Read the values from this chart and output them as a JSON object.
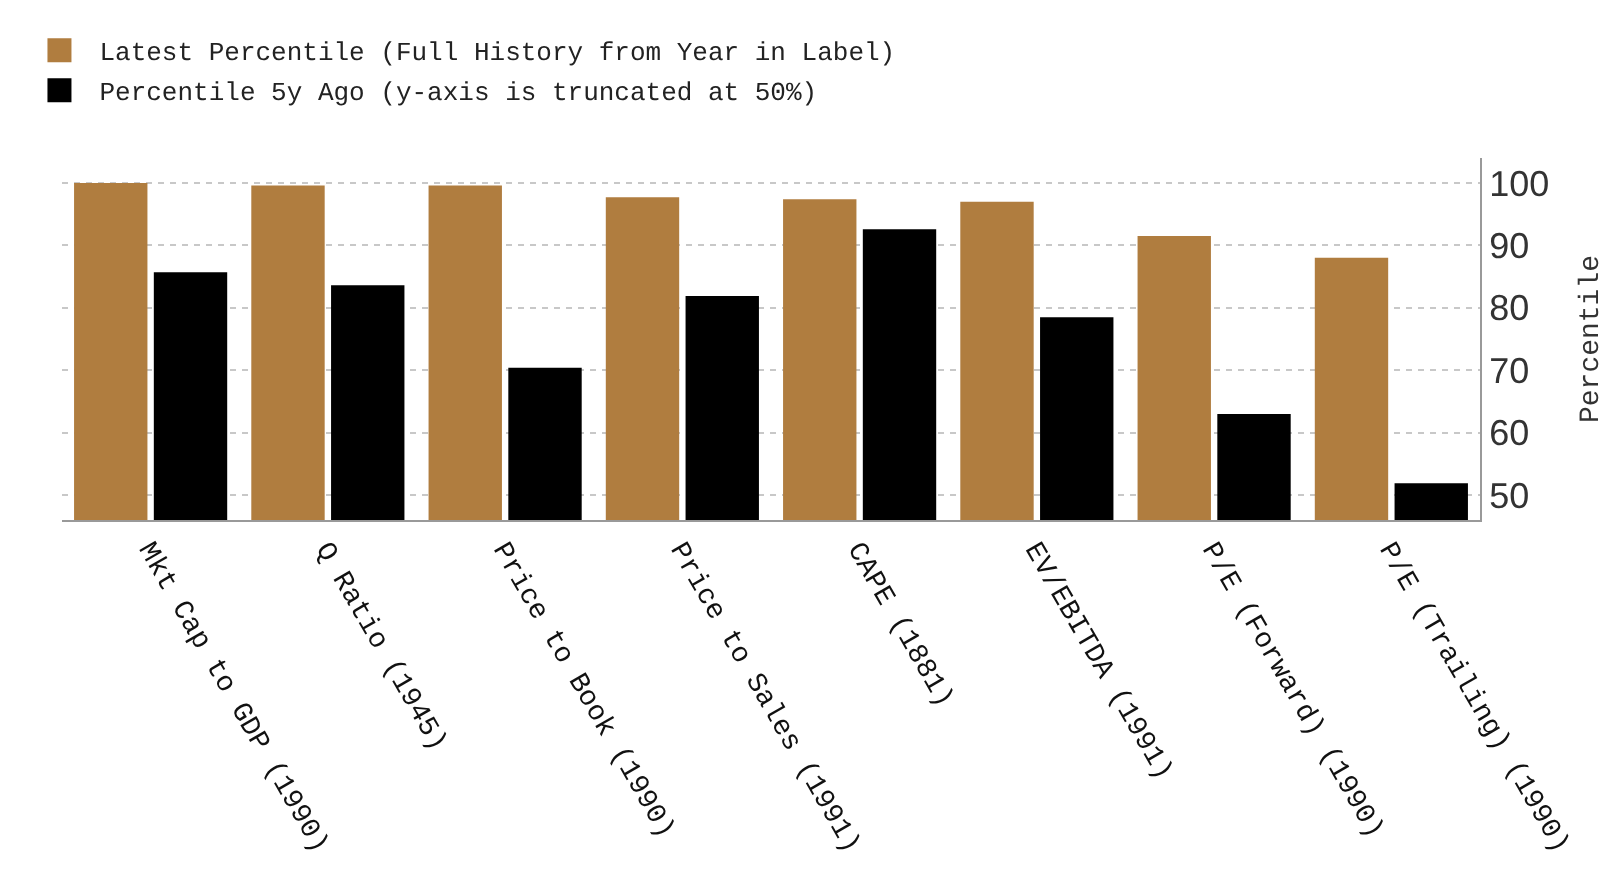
{
  "chart_data": {
    "type": "bar",
    "ylabel": "Percentile",
    "categories": [
      "Mkt Cap to GDP (1990)",
      "Q Ratio (1945)",
      "Price to Book (1990)",
      "Price to Sales (1991)",
      "CAPE (1881)",
      "EV/EBITDA (1991)",
      "P/E (Forward) (1990)",
      "P/E (Trailing) (1990)"
    ],
    "series": [
      {
        "name": "Latest Percentile (Full History from Year in Label)",
        "color": "#b07d3f",
        "values": [
          100,
          99.6,
          99.6,
          97.7,
          97.4,
          97,
          91.5,
          88
        ]
      },
      {
        "name": "Percentile 5y Ago (y-axis is truncated at 50%)",
        "color": "#000000",
        "values": [
          85.7,
          83.6,
          70.4,
          81.9,
          92.6,
          78.5,
          63,
          51.9
        ]
      }
    ],
    "ylim": [
      46,
      104
    ],
    "yticks": [
      50,
      60,
      70,
      80,
      90,
      100
    ],
    "grid": "y",
    "legend": "top left"
  }
}
